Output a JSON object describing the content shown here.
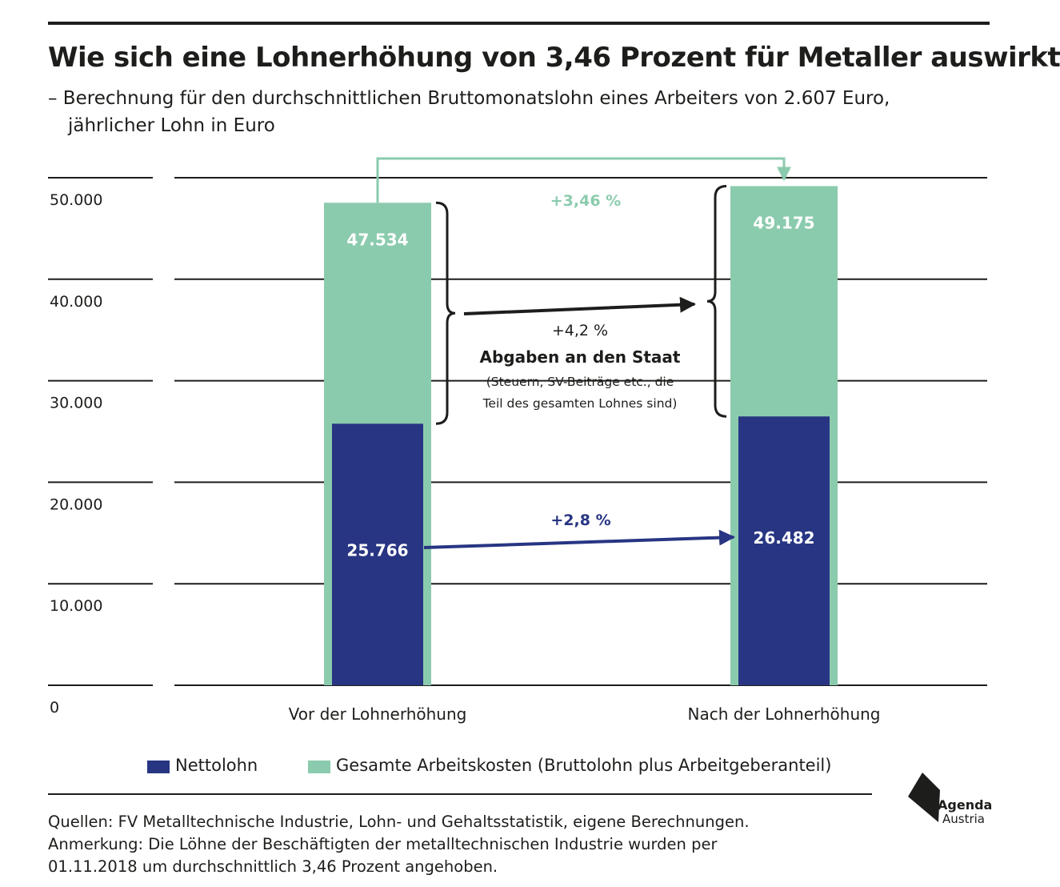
{
  "header": {
    "title": "Wie sich eine Lohnerhöhung von 3,46 Prozent für Metaller auswirkt",
    "subtitle_line1": "– Berechnung für den durchschnittlichen Bruttomonatslohn eines Arbeiters von 2.607 Euro,",
    "subtitle_line2": "jährlicher Lohn in Euro"
  },
  "chart_data": {
    "type": "bar",
    "stacked": "overlay",
    "categories": [
      "Vor der Lohnerhöhung",
      "Nach der Lohnerhöhung"
    ],
    "series": [
      {
        "name": "Nettolohn",
        "values": [
          25766,
          26482
        ],
        "labels": [
          "25.766",
          "26.482"
        ]
      },
      {
        "name": "Gesamte Arbeitskosten (Bruttolohn plus Arbeitgeberanteil)",
        "values": [
          47534,
          49175
        ],
        "labels": [
          "47.534",
          "49.175"
        ]
      }
    ],
    "ylim": [
      0,
      50000
    ],
    "y_ticks": [
      0,
      10000,
      20000,
      30000,
      40000,
      50000
    ],
    "y_tick_labels": [
      "0",
      "10.000",
      "20.000",
      "30.000",
      "40.000",
      "50.000"
    ],
    "grid": true,
    "legend_position": "bottom",
    "colors": {
      "net": "#283583",
      "total": "#8bcbad",
      "arrow_dark": "#1d1d1b"
    },
    "annotations": {
      "total_change": "+3,46 %",
      "levies_change": "+4,2 %",
      "levies_title": "Abgaben an den Staat",
      "levies_note_line1": "(Steuern, SV-Beiträge etc., die",
      "levies_note_line2": "Teil des gesamten Lohnes sind)",
      "net_change": "+2,8 %"
    }
  },
  "legend": {
    "net_label": "Nettolohn",
    "total_label": "Gesamte Arbeitskosten (Bruttolohn plus Arbeitgeberanteil)"
  },
  "footer": {
    "line1": "Quellen: FV Metalltechnische Industrie, Lohn- und Gehaltsstatistik, eigene Berechnungen.",
    "line2": "Anmerkung: Die Löhne der Beschäftigten der metalltechnischen Industrie wurden per",
    "line3": "01.11.2018 um durchschnittlich 3,46 Prozent angehoben."
  },
  "logo": {
    "line1": "Agenda",
    "line2": "Austria",
    "icon": "agenda-austria-logo-icon"
  }
}
